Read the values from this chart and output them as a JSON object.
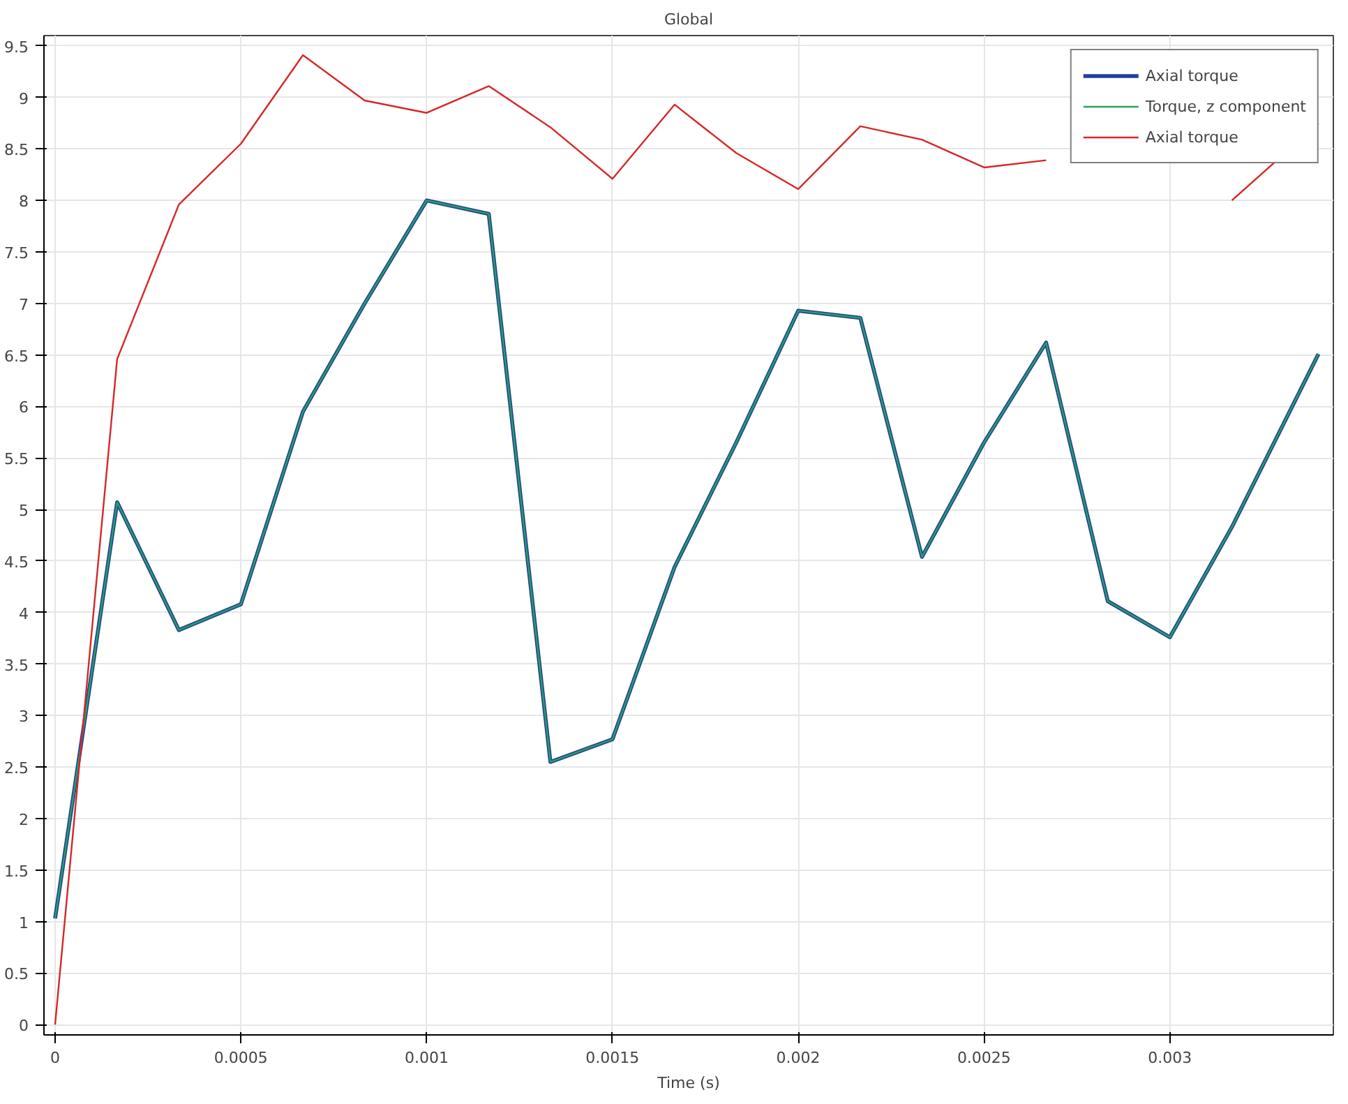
{
  "chart_data": {
    "type": "line",
    "title": "Global",
    "xlabel": "Time (s)",
    "x": [
      0,
      0.000167,
      0.000333,
      0.0005,
      0.000667,
      0.000833,
      0.001,
      0.001167,
      0.001333,
      0.0015,
      0.001667,
      0.001833,
      0.002,
      0.002167,
      0.002333,
      0.0025,
      0.002667,
      0.002833,
      0.003,
      0.003167,
      0.0034
    ],
    "series": [
      {
        "name": "Axial torque",
        "color": "#1f3f9f",
        "values": [
          1.03,
          5.07,
          3.83,
          4.08,
          5.95,
          7.0,
          8.0,
          7.87,
          2.55,
          2.77,
          4.44,
          5.65,
          6.93,
          6.86,
          4.54,
          5.65,
          6.62,
          4.11,
          3.76,
          4.83,
          6.51
        ]
      },
      {
        "name": "Torque, z component",
        "color": "#2ca05a",
        "values": [
          1.03,
          5.07,
          3.83,
          4.08,
          5.95,
          7.0,
          8.0,
          7.87,
          2.55,
          2.77,
          4.44,
          5.65,
          6.93,
          6.86,
          4.54,
          5.65,
          6.62,
          4.11,
          3.76,
          4.83,
          6.51
        ]
      },
      {
        "name": "Axial torque",
        "color": "#d62728",
        "values": [
          0,
          6.46,
          7.96,
          8.55,
          9.41,
          8.97,
          8.85,
          9.11,
          8.71,
          8.21,
          8.93,
          8.46,
          8.11,
          8.72,
          8.59,
          8.32,
          8.39,
          null,
          null,
          8.0,
          8.75
        ]
      }
    ],
    "xlim": [
      -3e-05,
      0.00344
    ],
    "ylim": [
      -0.1,
      9.6
    ],
    "xticks": [
      0,
      0.0005,
      0.001,
      0.0015,
      0.002,
      0.0025,
      0.003
    ],
    "yticks": [
      0,
      0.5,
      1,
      1.5,
      2,
      2.5,
      3,
      3.5,
      4,
      4.5,
      5,
      5.5,
      6,
      6.5,
      7,
      7.5,
      8,
      8.5,
      9,
      9.5
    ],
    "grid": true,
    "legend": "top right",
    "marker": "none",
    "line_style": "solid"
  }
}
